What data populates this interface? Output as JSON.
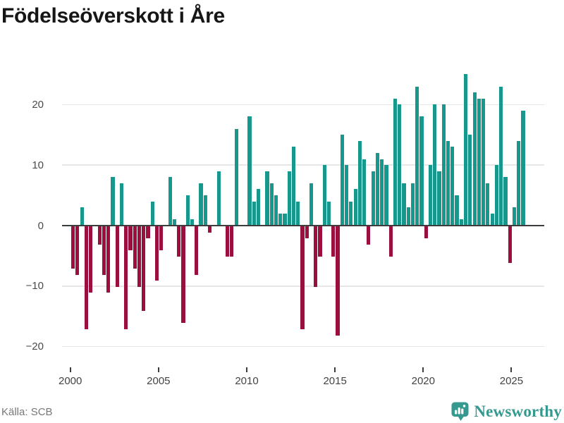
{
  "title": "Födelseöverskott i Åre",
  "footer": {
    "source": "Källa: SCB",
    "brand": "Newsworthy",
    "brand_color": "#35998f",
    "logo_icon": "pin-bar-chart-icon"
  },
  "chart_data": {
    "type": "bar",
    "title": "Födelseöverskott i Åre",
    "frequency": "quarterly",
    "start_year": 2000,
    "start_quarter": 1,
    "positive_color": "#17988d",
    "negative_color": "#9b0e3e",
    "grid": true,
    "ylim": [
      -22,
      27
    ],
    "y_ticks": [
      {
        "label": "20",
        "value": 20
      },
      {
        "label": "10",
        "value": 10
      },
      {
        "label": "0",
        "value": 0
      },
      {
        "label": "−10",
        "value": -10
      },
      {
        "label": "−20",
        "value": -20
      }
    ],
    "x_ticks": [
      {
        "label": "2000",
        "year": 2000
      },
      {
        "label": "2005",
        "year": 2005
      },
      {
        "label": "2010",
        "year": 2010
      },
      {
        "label": "2015",
        "year": 2015
      },
      {
        "label": "2020",
        "year": 2020
      },
      {
        "label": "2025",
        "year": 2025
      }
    ],
    "values": [
      -7,
      -8,
      3,
      -17,
      -11,
      0,
      -3,
      -8,
      -11,
      8,
      -10,
      7,
      -17,
      -4,
      -7,
      -10,
      -14,
      -2,
      4,
      -9,
      -4,
      0,
      8,
      1,
      -5,
      -16,
      5,
      1,
      -8,
      7,
      5,
      -1,
      0,
      9,
      0,
      -5,
      -5,
      16,
      0,
      0,
      18,
      4,
      6,
      0,
      9,
      7,
      5,
      2,
      2,
      9,
      13,
      4,
      -17,
      -2,
      7,
      -10,
      -5,
      10,
      4,
      -5,
      -18,
      15,
      10,
      4,
      6,
      14,
      11,
      -3,
      9,
      12,
      11,
      10,
      -5,
      21,
      20,
      7,
      3,
      7,
      23,
      18,
      -2,
      10,
      20,
      9,
      20,
      14,
      13,
      5,
      1,
      25,
      15,
      22,
      21,
      21,
      7,
      2,
      10,
      23,
      8,
      -6,
      3,
      14,
      19
    ]
  }
}
